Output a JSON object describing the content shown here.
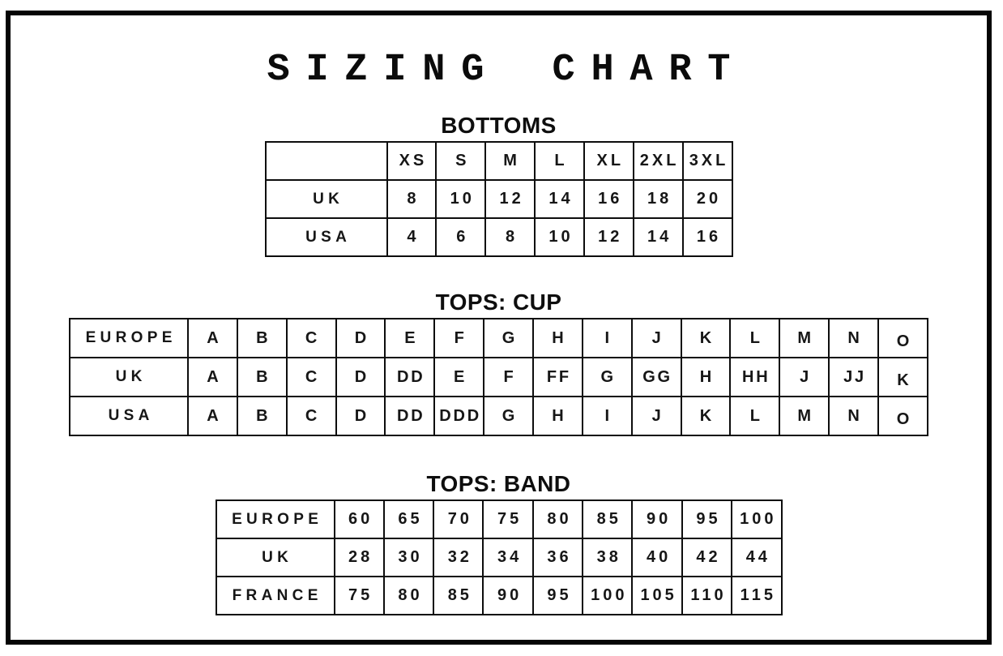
{
  "page": {
    "title": "SIZING CHART"
  },
  "colors": {
    "ink": "#0d0d0d",
    "background": "#ffffff",
    "frame_border": "#050505"
  },
  "sections": [
    {
      "id": "bottoms",
      "heading": "BOTTOMS",
      "table": {
        "header_row": {
          "label": "",
          "values": [
            "XS",
            "S",
            "M",
            "L",
            "XL",
            "2XL",
            "3XL"
          ]
        },
        "rows": [
          {
            "label": "UK",
            "values": [
              "8",
              "10",
              "12",
              "14",
              "16",
              "18",
              "20"
            ]
          },
          {
            "label": "USA",
            "values": [
              "4",
              "6",
              "8",
              "10",
              "12",
              "14",
              "16"
            ]
          }
        ]
      }
    },
    {
      "id": "tops-cup",
      "heading": "TOPS: CUP",
      "table": {
        "rows": [
          {
            "label": "EUROPE",
            "values": [
              "A",
              "B",
              "C",
              "D",
              "E",
              "F",
              "G",
              "H",
              "I",
              "J",
              "K",
              "L",
              "M",
              "N",
              "O"
            ]
          },
          {
            "label": "UK",
            "values": [
              "A",
              "B",
              "C",
              "D",
              "DD",
              "E",
              "F",
              "FF",
              "G",
              "GG",
              "H",
              "HH",
              "J",
              "JJ",
              "K"
            ]
          },
          {
            "label": "USA",
            "values": [
              "A",
              "B",
              "C",
              "D",
              "DD",
              "DDD",
              "G",
              "H",
              "I",
              "J",
              "K",
              "L",
              "M",
              "N",
              "O"
            ]
          }
        ]
      }
    },
    {
      "id": "tops-band",
      "heading": "TOPS: BAND",
      "table": {
        "rows": [
          {
            "label": "EUROPE",
            "values": [
              "60",
              "65",
              "70",
              "75",
              "80",
              "85",
              "90",
              "95",
              "100"
            ]
          },
          {
            "label": "UK",
            "values": [
              "28",
              "30",
              "32",
              "34",
              "36",
              "38",
              "40",
              "42",
              "44"
            ]
          },
          {
            "label": "FRANCE",
            "values": [
              "75",
              "80",
              "85",
              "90",
              "95",
              "100",
              "105",
              "110",
              "115"
            ]
          }
        ]
      }
    }
  ]
}
